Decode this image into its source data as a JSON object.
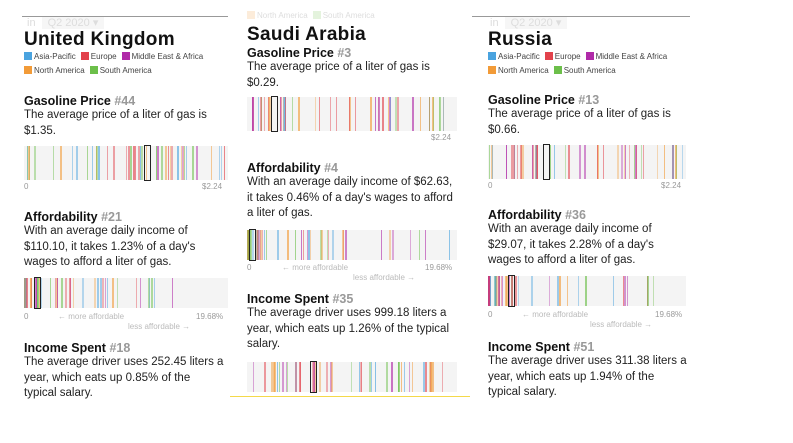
{
  "legend": [
    {
      "label": "Asia-Pacific",
      "color": "#4aa3df"
    },
    {
      "label": "Europe",
      "color": "#e2424c"
    },
    {
      "label": "Middle East & Africa",
      "color": "#b02aa8"
    },
    {
      "label": "North America",
      "color": "#f29b38"
    },
    {
      "label": "South America",
      "color": "#6cbf4a"
    }
  ],
  "period": {
    "prefix": "in",
    "value": "Q2 2020 ▾"
  },
  "axis": {
    "price_min": "0",
    "price_max": "$2.24",
    "afford_min": "0",
    "afford_max": "19.68%",
    "more": "← more affordable",
    "less": "less affordable →"
  },
  "countries": [
    {
      "name": "United Kingdom",
      "gas": {
        "heading": "Gasoline Price",
        "rank": "#44",
        "text": "The average price of a liter of gas is $1.35.",
        "value": 1.35
      },
      "afford": {
        "heading": "Affordability",
        "rank": "#21",
        "text": "With an average daily income of $110.10, it takes 1.23% of a day's wages to afford a liter of gas.",
        "value": 1.23
      },
      "income": {
        "heading": "Income Spent",
        "rank": "#18",
        "text": "The average driver uses 252.45 liters a year, which eats up 0.85% of the typical salary.",
        "value": 0.85
      }
    },
    {
      "name": "Saudi Arabia",
      "gas": {
        "heading": "Gasoline Price",
        "rank": "#3",
        "text": "The average price of a liter of gas is $0.29.",
        "value": 0.29
      },
      "afford": {
        "heading": "Affordability",
        "rank": "#4",
        "text": "With an average daily income of $62.63, it takes 0.46% of a day's wages to afford a liter of gas.",
        "value": 0.46
      },
      "income": {
        "heading": "Income Spent",
        "rank": "#35",
        "text": "The average driver uses 999.18 liters a year, which eats up 1.26% of the typical salary.",
        "value": 1.26
      }
    },
    {
      "name": "Russia",
      "gas": {
        "heading": "Gasoline Price",
        "rank": "#13",
        "text": "The average price of a liter of gas is $0.66.",
        "value": 0.66
      },
      "afford": {
        "heading": "Affordability",
        "rank": "#36",
        "text": "With an average daily income of $29.07, it takes 2.28% of a day's wages to afford a liter of gas.",
        "value": 2.28
      },
      "income": {
        "heading": "Income Spent",
        "rank": "#51",
        "text": "The average driver uses 311.38 liters a year, which eats up 1.94% of the typical salary.",
        "value": 1.94
      }
    }
  ]
}
